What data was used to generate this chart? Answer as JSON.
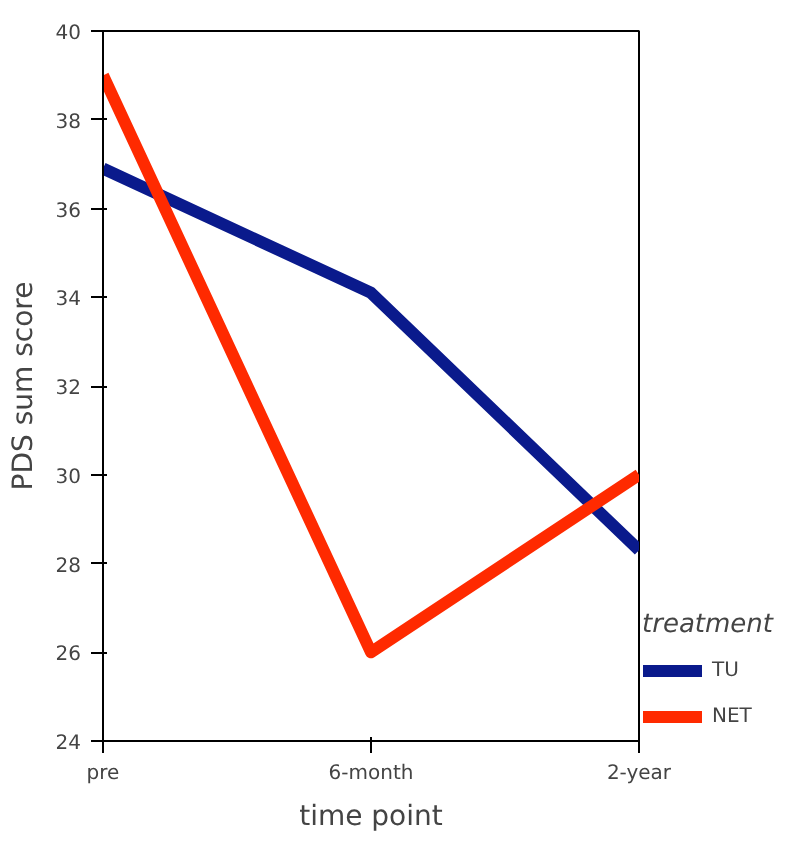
{
  "chart_data": {
    "type": "line",
    "xlabel": "time point",
    "ylabel": "PDS sum score",
    "categories": [
      "pre",
      "6-month",
      "2-year"
    ],
    "ylim": [
      24,
      40
    ],
    "yticks": [
      24,
      26,
      28,
      30,
      32,
      34,
      36,
      38,
      40
    ],
    "legend_title": "treatment",
    "legend": "right",
    "grid": false,
    "marker": "none",
    "line_style": "solid",
    "series": [
      {
        "name": "TU",
        "color": "#0a1a8c",
        "values": [
          36.9,
          34.1,
          28.3
        ]
      },
      {
        "name": "NET",
        "color": "#ff2a00",
        "values": [
          39.0,
          26.0,
          30.0
        ]
      }
    ]
  }
}
